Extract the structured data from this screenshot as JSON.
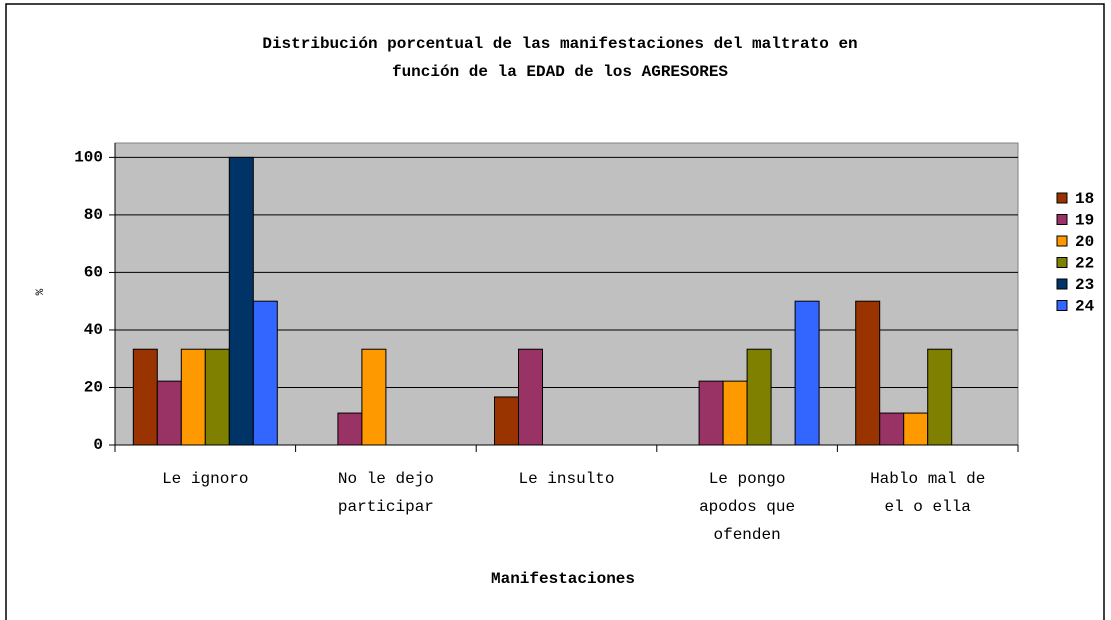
{
  "chart_data": {
    "type": "bar",
    "title": [
      "Distribución porcentual de las manifestaciones del maltrato en",
      "función de la EDAD de los AGRESORES"
    ],
    "x_label": "Manifestaciones",
    "y_label": "%",
    "categories": [
      "Le ignoro",
      "No le dejo participar",
      "Le insulto",
      "Le pongo apodos que ofenden",
      "Hablo mal de el o ella"
    ],
    "series": [
      {
        "name": "18",
        "color": "#993300",
        "values": [
          33.3,
          0,
          16.7,
          0,
          50
        ]
      },
      {
        "name": "19",
        "color": "#993366",
        "values": [
          22.2,
          11.1,
          33.3,
          22.2,
          11.1
        ]
      },
      {
        "name": "20",
        "color": "#ff9900",
        "values": [
          33.3,
          33.3,
          0,
          22.2,
          11.1
        ]
      },
      {
        "name": "22",
        "color": "#808000",
        "values": [
          33.3,
          0,
          0,
          33.3,
          33.3
        ]
      },
      {
        "name": "23",
        "color": "#003366",
        "values": [
          100,
          0,
          0,
          0,
          0
        ]
      },
      {
        "name": "24",
        "color": "#3366ff",
        "values": [
          50,
          0,
          0,
          50,
          0
        ]
      }
    ],
    "ylim": [
      0,
      105
    ],
    "yticks": [
      0,
      20,
      40,
      60,
      80,
      100
    ],
    "grid": true,
    "legend": "right"
  }
}
